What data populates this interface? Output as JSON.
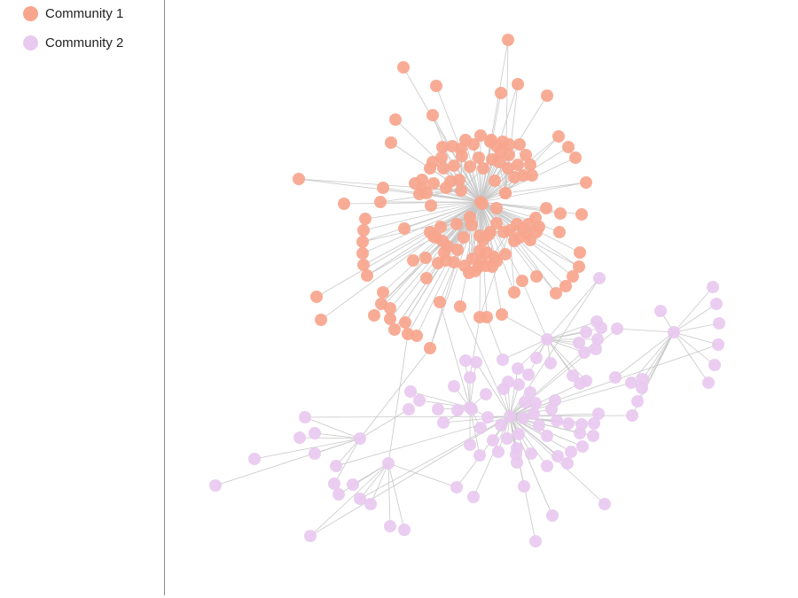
{
  "legend": {
    "items": [
      {
        "label": "Community 1",
        "color": "#f7a58d"
      },
      {
        "label": "Community 2",
        "color": "#e8c9ef"
      }
    ]
  },
  "graph": {
    "edge_color": "#c8c8c8",
    "communities": [
      {
        "id": "community-1",
        "node_color": "#f7a58d",
        "node_count": 170
      },
      {
        "id": "community-2",
        "node_color": "#e8c9ef",
        "node_count": 140
      }
    ]
  }
}
